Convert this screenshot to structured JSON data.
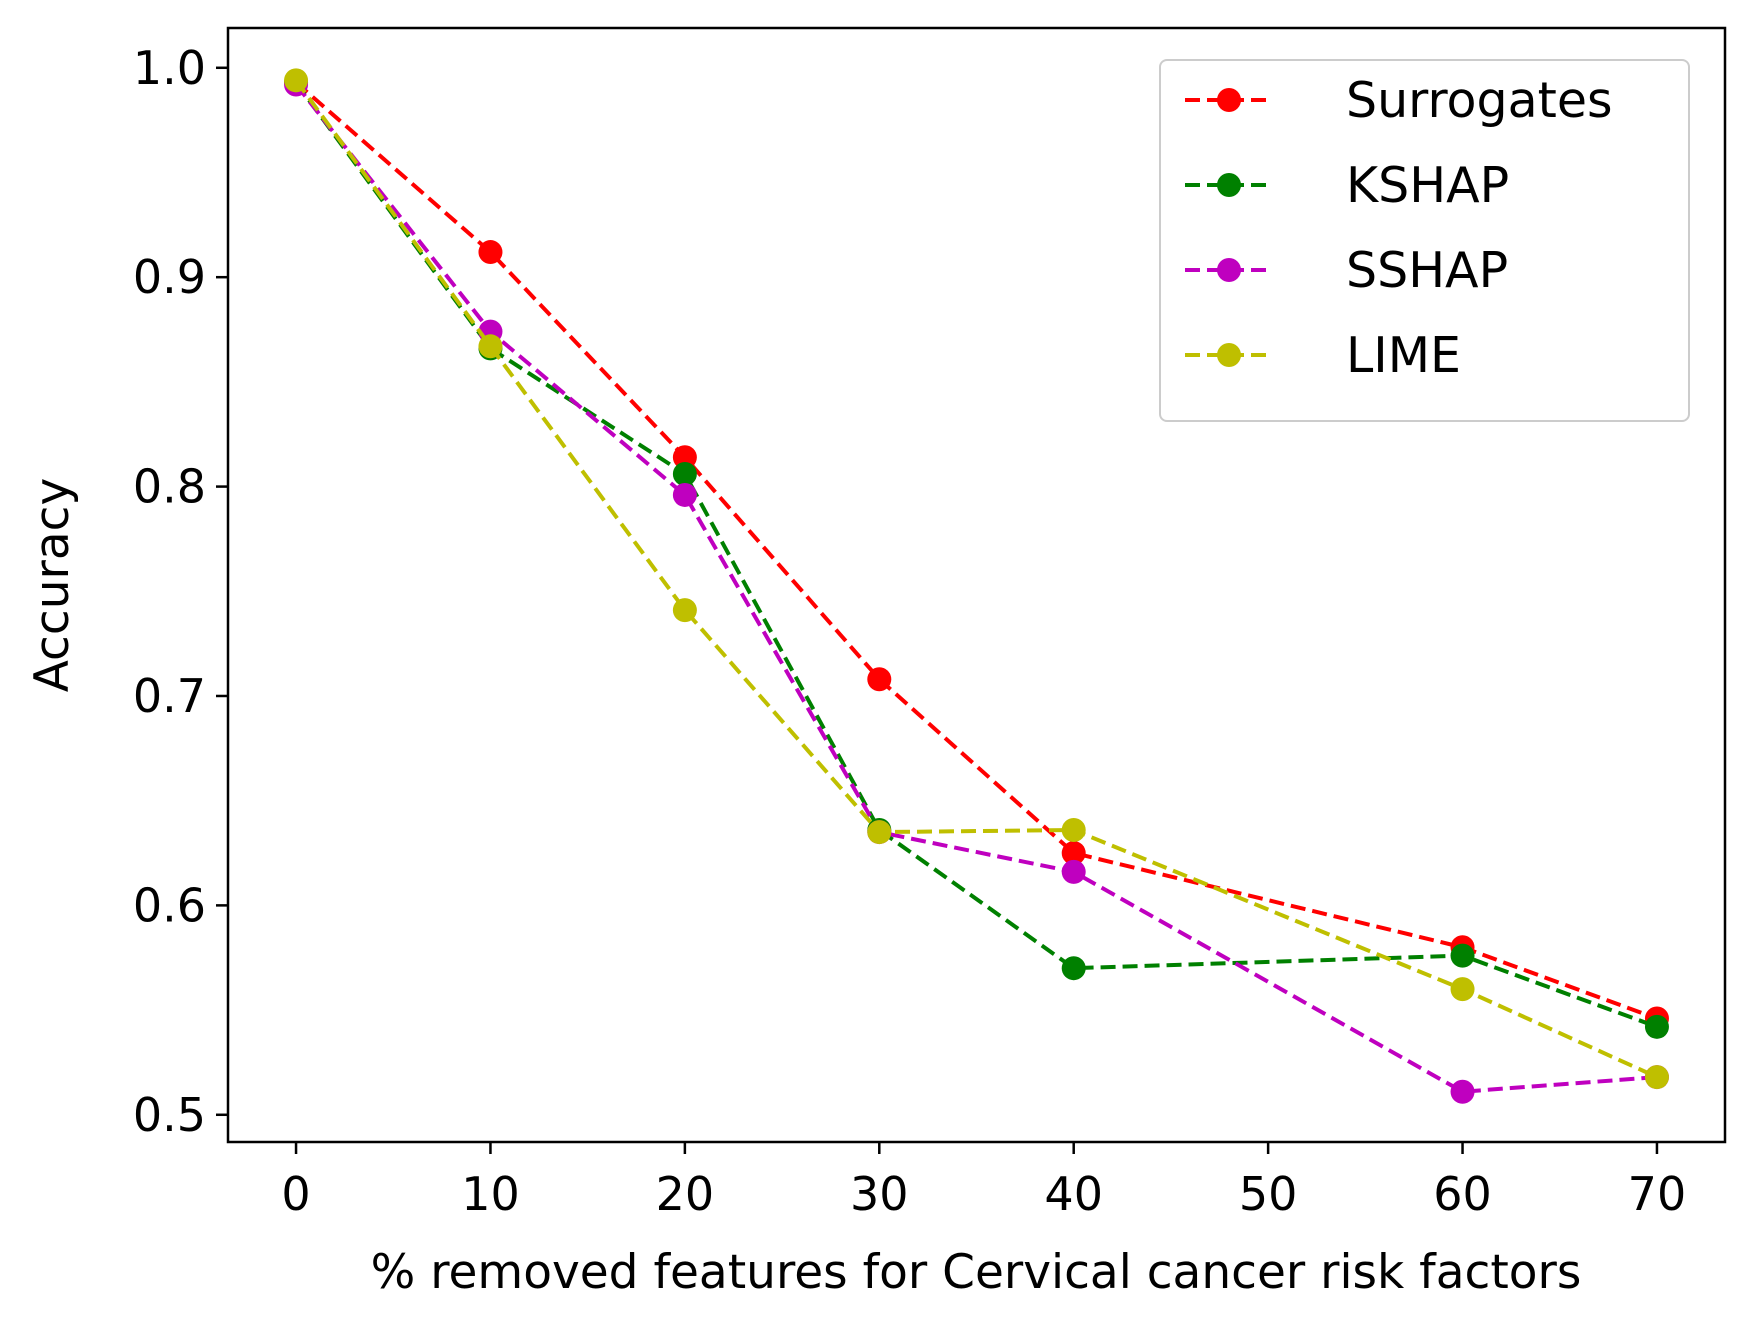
{
  "chart_data": {
    "type": "line",
    "title": "",
    "xlabel": "% removed features for Cervical cancer risk factors",
    "ylabel": "Accuracy",
    "x": [
      0,
      10,
      20,
      30,
      40,
      60,
      70
    ],
    "xlim": [
      -3.5,
      73.5
    ],
    "ylim": [
      0.487,
      1.019
    ],
    "xticks": [
      0,
      10,
      20,
      30,
      40,
      50,
      60,
      70
    ],
    "yticks": [
      0.5,
      0.6,
      0.7,
      0.8,
      0.9,
      1.0
    ],
    "xtick_labels": [
      "0",
      "10",
      "20",
      "30",
      "40",
      "50",
      "60",
      "70"
    ],
    "ytick_labels": [
      "0.5",
      "0.6",
      "0.7",
      "0.8",
      "0.9",
      "1.0"
    ],
    "grid": false,
    "legend_position": "top-right",
    "line_style": "dashed",
    "marker": "circle",
    "series": [
      {
        "name": "Surrogates",
        "color": "#ff0000",
        "values": [
          0.993,
          0.912,
          0.814,
          0.708,
          0.625,
          0.58,
          0.546
        ]
      },
      {
        "name": "KSHAP",
        "color": "#008000",
        "values": [
          0.993,
          0.866,
          0.806,
          0.636,
          0.57,
          0.576,
          0.542
        ]
      },
      {
        "name": "SSHAP",
        "color": "#bf00bf",
        "values": [
          0.992,
          0.874,
          0.796,
          0.635,
          0.616,
          0.511,
          0.518
        ]
      },
      {
        "name": "LIME",
        "color": "#bfbf00",
        "values": [
          0.994,
          0.867,
          0.741,
          0.635,
          0.636,
          0.56,
          0.518
        ]
      }
    ]
  }
}
